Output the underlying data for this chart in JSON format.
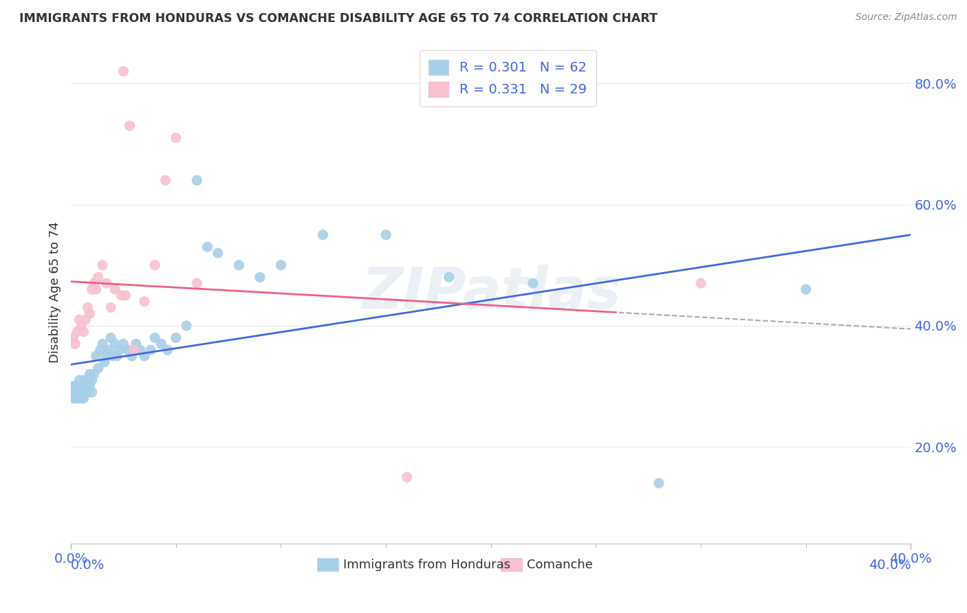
{
  "title": "IMMIGRANTS FROM HONDURAS VS COMANCHE DISABILITY AGE 65 TO 74 CORRELATION CHART",
  "source": "Source: ZipAtlas.com",
  "ylabel": "Disability Age 65 to 74",
  "xlim": [
    0.0,
    0.4
  ],
  "ylim": [
    0.04,
    0.87
  ],
  "ytick_labels": [
    "20.0%",
    "40.0%",
    "60.0%",
    "80.0%"
  ],
  "ytick_values": [
    0.2,
    0.4,
    0.6,
    0.8
  ],
  "legend_label1": "R = 0.301   N = 62",
  "legend_label2": "R = 0.331   N = 29",
  "legend_color1": "#a8cfe8",
  "legend_color2": "#f9c0d0",
  "dot_color1": "#a8cfe8",
  "dot_color2": "#f9c0d0",
  "line_color1": "#4169e1",
  "line_color2": "#f06080",
  "line_color_dash": "#aaaaaa",
  "watermark": "ZIPatlas",
  "background_color": "#ffffff",
  "grid_color": "#e0e0e0",
  "tick_color": "#4169e1",
  "bottom_label1": "Immigrants from Honduras",
  "bottom_label2": "Comanche",
  "honduras_x": [
    0.001,
    0.001,
    0.001,
    0.002,
    0.002,
    0.002,
    0.003,
    0.003,
    0.003,
    0.004,
    0.004,
    0.004,
    0.005,
    0.005,
    0.005,
    0.006,
    0.006,
    0.007,
    0.007,
    0.008,
    0.008,
    0.009,
    0.009,
    0.01,
    0.01,
    0.011,
    0.012,
    0.013,
    0.014,
    0.015,
    0.016,
    0.017,
    0.018,
    0.019,
    0.02,
    0.021,
    0.022,
    0.023,
    0.025,
    0.027,
    0.029,
    0.031,
    0.033,
    0.035,
    0.038,
    0.04,
    0.043,
    0.046,
    0.05,
    0.055,
    0.06,
    0.065,
    0.07,
    0.08,
    0.09,
    0.1,
    0.12,
    0.15,
    0.18,
    0.22,
    0.28,
    0.35
  ],
  "honduras_y": [
    0.28,
    0.29,
    0.3,
    0.28,
    0.29,
    0.3,
    0.29,
    0.3,
    0.28,
    0.3,
    0.29,
    0.31,
    0.28,
    0.3,
    0.29,
    0.31,
    0.28,
    0.3,
    0.29,
    0.31,
    0.29,
    0.32,
    0.3,
    0.31,
    0.29,
    0.32,
    0.35,
    0.33,
    0.36,
    0.37,
    0.34,
    0.35,
    0.36,
    0.38,
    0.35,
    0.37,
    0.35,
    0.36,
    0.37,
    0.36,
    0.35,
    0.37,
    0.36,
    0.35,
    0.36,
    0.38,
    0.37,
    0.36,
    0.38,
    0.4,
    0.64,
    0.53,
    0.52,
    0.5,
    0.48,
    0.5,
    0.55,
    0.55,
    0.48,
    0.47,
    0.14,
    0.46
  ],
  "comanche_x": [
    0.001,
    0.002,
    0.003,
    0.004,
    0.005,
    0.006,
    0.007,
    0.008,
    0.009,
    0.01,
    0.011,
    0.012,
    0.013,
    0.015,
    0.017,
    0.019,
    0.021,
    0.024,
    0.026,
    0.03,
    0.035,
    0.04,
    0.045,
    0.05,
    0.06,
    0.025,
    0.028,
    0.3,
    0.16
  ],
  "comanche_y": [
    0.38,
    0.37,
    0.39,
    0.41,
    0.4,
    0.39,
    0.41,
    0.43,
    0.42,
    0.46,
    0.47,
    0.46,
    0.48,
    0.5,
    0.47,
    0.43,
    0.46,
    0.45,
    0.45,
    0.36,
    0.44,
    0.5,
    0.64,
    0.71,
    0.47,
    0.82,
    0.73,
    0.47,
    0.15
  ]
}
